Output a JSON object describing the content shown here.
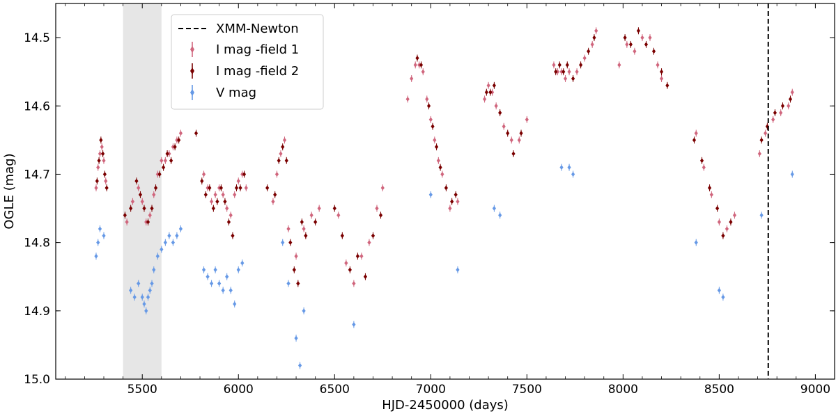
{
  "chart_data": {
    "type": "scatter",
    "xlabel": "HJD-2450000 (days)",
    "ylabel": "OGLE (mag)",
    "xlim": [
      5050,
      9100
    ],
    "ylim": [
      15.0,
      14.45
    ],
    "y_inverted": true,
    "xticks": [
      5500,
      6000,
      6500,
      7000,
      7500,
      8000,
      8500,
      9000
    ],
    "yticks": [
      14.5,
      14.6,
      14.7,
      14.8,
      14.9,
      15.0
    ],
    "ytick_labels": [
      "14.5",
      "14.6",
      "14.7",
      "14.8",
      "14.9",
      "15.0"
    ],
    "shaded_region": {
      "x_start": 5400,
      "x_end": 5600,
      "color": "#e6e6e6"
    },
    "vline": {
      "x": 8755,
      "label": "XMM-Newton",
      "color": "#000000",
      "style": "dashed"
    },
    "legend": {
      "placement": "upper-left",
      "entries": [
        {
          "label": "XMM-Newton",
          "kind": "dashed-line",
          "color": "#000000"
        },
        {
          "label": "I mag -field 1",
          "kind": "errorbar",
          "color": "#d0667d"
        },
        {
          "label": "I mag -field 2",
          "kind": "errorbar",
          "color": "#7a0000"
        },
        {
          "label": "V mag",
          "kind": "errorbar",
          "color": "#6699e6"
        }
      ]
    },
    "series": [
      {
        "name": "I mag -field 1",
        "color": "#d0667d",
        "points": [
          [
            5260,
            14.72
          ],
          [
            5270,
            14.69
          ],
          [
            5280,
            14.67
          ],
          [
            5290,
            14.66
          ],
          [
            5300,
            14.68
          ],
          [
            5310,
            14.71
          ],
          [
            5420,
            14.77
          ],
          [
            5450,
            14.74
          ],
          [
            5480,
            14.72
          ],
          [
            5500,
            14.74
          ],
          [
            5520,
            14.77
          ],
          [
            5540,
            14.76
          ],
          [
            5560,
            14.73
          ],
          [
            5580,
            14.7
          ],
          [
            5600,
            14.68
          ],
          [
            5620,
            14.68
          ],
          [
            5640,
            14.67
          ],
          [
            5660,
            14.66
          ],
          [
            5680,
            14.65
          ],
          [
            5700,
            14.64
          ],
          [
            5820,
            14.7
          ],
          [
            5840,
            14.72
          ],
          [
            5860,
            14.74
          ],
          [
            5880,
            14.73
          ],
          [
            5900,
            14.72
          ],
          [
            5920,
            14.73
          ],
          [
            5940,
            14.75
          ],
          [
            5960,
            14.76
          ],
          [
            5980,
            14.73
          ],
          [
            6000,
            14.71
          ],
          [
            6020,
            14.7
          ],
          [
            6040,
            14.72
          ],
          [
            6180,
            14.74
          ],
          [
            6200,
            14.7
          ],
          [
            6220,
            14.67
          ],
          [
            6240,
            14.65
          ],
          [
            6260,
            14.78
          ],
          [
            6300,
            14.82
          ],
          [
            6340,
            14.78
          ],
          [
            6380,
            14.76
          ],
          [
            6420,
            14.75
          ],
          [
            6520,
            14.76
          ],
          [
            6560,
            14.83
          ],
          [
            6600,
            14.86
          ],
          [
            6640,
            14.82
          ],
          [
            6680,
            14.8
          ],
          [
            6720,
            14.75
          ],
          [
            6750,
            14.72
          ],
          [
            6880,
            14.59
          ],
          [
            6900,
            14.56
          ],
          [
            6920,
            14.54
          ],
          [
            6940,
            14.54
          ],
          [
            6960,
            14.55
          ],
          [
            6980,
            14.59
          ],
          [
            7000,
            14.62
          ],
          [
            7020,
            14.65
          ],
          [
            7040,
            14.68
          ],
          [
            7060,
            14.7
          ],
          [
            7100,
            14.75
          ],
          [
            7140,
            14.74
          ],
          [
            7280,
            14.59
          ],
          [
            7300,
            14.57
          ],
          [
            7320,
            14.58
          ],
          [
            7340,
            14.6
          ],
          [
            7380,
            14.63
          ],
          [
            7420,
            14.65
          ],
          [
            7460,
            14.65
          ],
          [
            7500,
            14.62
          ],
          [
            7640,
            14.54
          ],
          [
            7660,
            14.55
          ],
          [
            7680,
            14.55
          ],
          [
            7700,
            14.56
          ],
          [
            7720,
            14.55
          ],
          [
            7760,
            14.55
          ],
          [
            7800,
            14.53
          ],
          [
            7840,
            14.51
          ],
          [
            7860,
            14.49
          ],
          [
            7980,
            14.54
          ],
          [
            8020,
            14.51
          ],
          [
            8060,
            14.52
          ],
          [
            8100,
            14.5
          ],
          [
            8140,
            14.5
          ],
          [
            8180,
            14.54
          ],
          [
            8200,
            14.56
          ],
          [
            8380,
            14.64
          ],
          [
            8420,
            14.69
          ],
          [
            8460,
            14.73
          ],
          [
            8500,
            14.77
          ],
          [
            8540,
            14.78
          ],
          [
            8580,
            14.76
          ],
          [
            8710,
            14.67
          ],
          [
            8740,
            14.64
          ],
          [
            8780,
            14.62
          ],
          [
            8820,
            14.61
          ],
          [
            8860,
            14.6
          ],
          [
            8880,
            14.58
          ]
        ]
      },
      {
        "name": "I mag -field 2",
        "color": "#7a0000",
        "points": [
          [
            5265,
            14.71
          ],
          [
            5275,
            14.68
          ],
          [
            5285,
            14.65
          ],
          [
            5295,
            14.67
          ],
          [
            5305,
            14.7
          ],
          [
            5315,
            14.72
          ],
          [
            5410,
            14.76
          ],
          [
            5440,
            14.75
          ],
          [
            5470,
            14.71
          ],
          [
            5490,
            14.73
          ],
          [
            5510,
            14.75
          ],
          [
            5530,
            14.77
          ],
          [
            5550,
            14.75
          ],
          [
            5570,
            14.72
          ],
          [
            5590,
            14.7
          ],
          [
            5610,
            14.69
          ],
          [
            5630,
            14.67
          ],
          [
            5650,
            14.68
          ],
          [
            5670,
            14.66
          ],
          [
            5690,
            14.65
          ],
          [
            5780,
            14.64
          ],
          [
            5810,
            14.71
          ],
          [
            5830,
            14.73
          ],
          [
            5850,
            14.72
          ],
          [
            5870,
            14.75
          ],
          [
            5890,
            14.74
          ],
          [
            5910,
            14.72
          ],
          [
            5930,
            14.74
          ],
          [
            5950,
            14.77
          ],
          [
            5970,
            14.79
          ],
          [
            5990,
            14.72
          ],
          [
            6010,
            14.72
          ],
          [
            6030,
            14.7
          ],
          [
            6150,
            14.72
          ],
          [
            6190,
            14.73
          ],
          [
            6210,
            14.68
          ],
          [
            6230,
            14.66
          ],
          [
            6250,
            14.68
          ],
          [
            6270,
            14.8
          ],
          [
            6290,
            14.84
          ],
          [
            6310,
            14.86
          ],
          [
            6330,
            14.77
          ],
          [
            6350,
            14.79
          ],
          [
            6400,
            14.77
          ],
          [
            6500,
            14.75
          ],
          [
            6540,
            14.79
          ],
          [
            6580,
            14.84
          ],
          [
            6620,
            14.82
          ],
          [
            6660,
            14.85
          ],
          [
            6700,
            14.79
          ],
          [
            6740,
            14.76
          ],
          [
            6930,
            14.53
          ],
          [
            6950,
            14.54
          ],
          [
            6990,
            14.6
          ],
          [
            7010,
            14.63
          ],
          [
            7030,
            14.66
          ],
          [
            7050,
            14.69
          ],
          [
            7080,
            14.72
          ],
          [
            7110,
            14.74
          ],
          [
            7130,
            14.73
          ],
          [
            7290,
            14.58
          ],
          [
            7310,
            14.58
          ],
          [
            7330,
            14.57
          ],
          [
            7360,
            14.61
          ],
          [
            7400,
            14.64
          ],
          [
            7430,
            14.67
          ],
          [
            7470,
            14.64
          ],
          [
            7650,
            14.55
          ],
          [
            7670,
            14.54
          ],
          [
            7690,
            14.55
          ],
          [
            7710,
            14.54
          ],
          [
            7740,
            14.56
          ],
          [
            7780,
            14.54
          ],
          [
            7820,
            14.52
          ],
          [
            7850,
            14.5
          ],
          [
            8010,
            14.5
          ],
          [
            8040,
            14.51
          ],
          [
            8080,
            14.49
          ],
          [
            8120,
            14.51
          ],
          [
            8160,
            14.52
          ],
          [
            8200,
            14.55
          ],
          [
            8230,
            14.57
          ],
          [
            8370,
            14.65
          ],
          [
            8410,
            14.68
          ],
          [
            8450,
            14.72
          ],
          [
            8490,
            14.75
          ],
          [
            8520,
            14.79
          ],
          [
            8560,
            14.77
          ],
          [
            8720,
            14.65
          ],
          [
            8750,
            14.63
          ],
          [
            8790,
            14.61
          ],
          [
            8830,
            14.6
          ],
          [
            8870,
            14.59
          ]
        ]
      },
      {
        "name": "V mag",
        "color": "#6699e6",
        "points": [
          [
            5260,
            14.82
          ],
          [
            5270,
            14.8
          ],
          [
            5280,
            14.78
          ],
          [
            5300,
            14.79
          ],
          [
            5440,
            14.87
          ],
          [
            5460,
            14.88
          ],
          [
            5480,
            14.86
          ],
          [
            5500,
            14.88
          ],
          [
            5510,
            14.89
          ],
          [
            5520,
            14.9
          ],
          [
            5530,
            14.88
          ],
          [
            5540,
            14.87
          ],
          [
            5550,
            14.86
          ],
          [
            5560,
            14.84
          ],
          [
            5580,
            14.82
          ],
          [
            5600,
            14.81
          ],
          [
            5620,
            14.8
          ],
          [
            5640,
            14.79
          ],
          [
            5660,
            14.8
          ],
          [
            5680,
            14.79
          ],
          [
            5700,
            14.78
          ],
          [
            5820,
            14.84
          ],
          [
            5840,
            14.85
          ],
          [
            5860,
            14.86
          ],
          [
            5880,
            14.84
          ],
          [
            5900,
            14.86
          ],
          [
            5920,
            14.87
          ],
          [
            5940,
            14.85
          ],
          [
            5960,
            14.87
          ],
          [
            5980,
            14.89
          ],
          [
            6000,
            14.84
          ],
          [
            6020,
            14.83
          ],
          [
            6230,
            14.8
          ],
          [
            6260,
            14.86
          ],
          [
            6300,
            14.94
          ],
          [
            6320,
            14.98
          ],
          [
            6340,
            14.9
          ],
          [
            6600,
            14.92
          ],
          [
            7000,
            14.73
          ],
          [
            7140,
            14.84
          ],
          [
            7330,
            14.75
          ],
          [
            7360,
            14.76
          ],
          [
            7680,
            14.69
          ],
          [
            7720,
            14.69
          ],
          [
            7740,
            14.7
          ],
          [
            8380,
            14.8
          ],
          [
            8500,
            14.87
          ],
          [
            8520,
            14.88
          ],
          [
            8720,
            14.76
          ],
          [
            8880,
            14.7
          ]
        ]
      }
    ]
  }
}
